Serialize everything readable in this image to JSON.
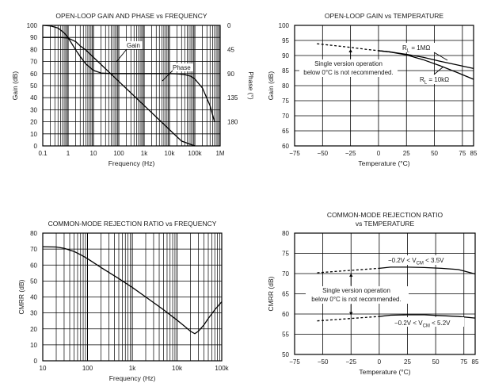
{
  "chart_data": [
    {
      "type": "line",
      "title": "OPEN-LOOP GAIN AND PHASE vs FREQUENCY",
      "xlabel": "Frequency (Hz)",
      "ylabel": "Gain (dB)",
      "y2label": "Phase (°)",
      "xscale": "log",
      "xlim": [
        0.1,
        1000000
      ],
      "ylim": [
        0,
        100
      ],
      "y2lim": [
        0,
        225
      ],
      "xticks": [
        0.1,
        1,
        10,
        100,
        1000,
        10000,
        100000,
        1000000
      ],
      "xtick_labels": [
        "0.1",
        "1",
        "10",
        "100",
        "1k",
        "10k",
        "100k",
        "1M"
      ],
      "yticks": [
        0,
        10,
        20,
        30,
        40,
        50,
        60,
        70,
        80,
        90,
        100
      ],
      "ytick_labels": [
        "0",
        "10",
        "20",
        "30",
        "40",
        "50",
        "60",
        "70",
        "80",
        "90",
        "100"
      ],
      "y2ticks": [
        0,
        45,
        90,
        135,
        180
      ],
      "y2tick_labels": [
        "0",
        "45",
        "90",
        "135",
        "180"
      ],
      "grid": true,
      "series": [
        {
          "name": "Gain",
          "axis": "left",
          "x": [
            0.1,
            0.5,
            1,
            2,
            3,
            5,
            10,
            30,
            100,
            300,
            1000,
            3000,
            10000,
            30000,
            100000
          ],
          "values": [
            90,
            90,
            89.5,
            86.5,
            83,
            79.5,
            73.5,
            64,
            53.5,
            44,
            33.5,
            24,
            13.5,
            4,
            0
          ]
        },
        {
          "name": "Phase",
          "axis": "right",
          "x": [
            0.1,
            0.2,
            0.4,
            0.7,
            1,
            2,
            3,
            5,
            10,
            20,
            50,
            100,
            300,
            1000,
            3000,
            10000,
            20000,
            40000,
            70000,
            100000,
            200000,
            400000,
            600000
          ],
          "values": [
            0,
            1,
            5,
            14,
            23,
            46,
            58,
            72,
            84,
            89,
            90,
            90,
            90,
            90,
            90,
            90,
            90.5,
            92,
            95,
            100,
            117,
            150,
            180
          ]
        }
      ],
      "annotations": [
        "Gain",
        "Phase"
      ]
    },
    {
      "type": "line",
      "title": "OPEN-LOOP GAIN vs TEMPERATURE",
      "xlabel": "Temperature (°C)",
      "ylabel": "Gain (dB)",
      "xlim": [
        -75,
        85
      ],
      "ylim": [
        60,
        100
      ],
      "xticks": [
        -75,
        -50,
        -25,
        0,
        25,
        50,
        75,
        85
      ],
      "xtick_labels": [
        "−75",
        "−50",
        "−25",
        "0",
        "25",
        "50",
        "75",
        "85"
      ],
      "yticks": [
        60,
        65,
        70,
        75,
        80,
        85,
        90,
        95,
        100
      ],
      "ytick_labels": [
        "60",
        "65",
        "70",
        "75",
        "80",
        "85",
        "90",
        "95",
        "100"
      ],
      "grid": true,
      "series": [
        {
          "name": "RL = 1MΩ",
          "x": [
            -55,
            -40,
            -25,
            -10,
            0,
            10,
            25,
            40,
            55,
            70,
            85
          ],
          "values": [
            93.9,
            93.3,
            92.7,
            92.0,
            91.6,
            91.2,
            90.4,
            89.4,
            88.1,
            86.9,
            85.7
          ],
          "dashed_below": 0
        },
        {
          "name": "RL = 10kΩ",
          "x": [
            0,
            10,
            25,
            40,
            55,
            70,
            85
          ],
          "values": [
            91.6,
            91.2,
            90.2,
            88.6,
            86.6,
            84.4,
            82.1
          ]
        }
      ],
      "annotations": [
        {
          "label_main": "R",
          "label_sub": "L",
          "label_rest": " = 1MΩ"
        },
        {
          "label_main": "R",
          "label_sub": "L",
          "label_rest": " = 10kΩ"
        },
        {
          "line1": "Single version operation",
          "line2": "below 0°C is not recommended."
        }
      ]
    },
    {
      "type": "line",
      "title": "COMMON-MODE REJECTION RATIO vs FREQUENCY",
      "xlabel": "Frequency (Hz)",
      "ylabel": "CMRR (dB)",
      "xscale": "log",
      "xlim": [
        10,
        100000
      ],
      "ylim": [
        0,
        80
      ],
      "xticks": [
        10,
        100,
        1000,
        10000,
        100000
      ],
      "xtick_labels": [
        "10",
        "100",
        "1k",
        "10k",
        "100k"
      ],
      "yticks": [
        0,
        10,
        20,
        30,
        40,
        50,
        60,
        70,
        80
      ],
      "ytick_labels": [
        "0",
        "10",
        "20",
        "30",
        "40",
        "50",
        "60",
        "70",
        "80"
      ],
      "grid": true,
      "series": [
        {
          "name": "CMRR",
          "x": [
            10,
            20,
            30,
            50,
            70,
            100,
            200,
            500,
            1000,
            2000,
            5000,
            10000,
            15000,
            20000,
            25000,
            30000,
            40000,
            50000,
            70000,
            100000
          ],
          "values": [
            71.5,
            71.3,
            70.5,
            68.5,
            66.5,
            64,
            58.5,
            51.5,
            46,
            40,
            32,
            25.5,
            21.5,
            18.5,
            17,
            18.5,
            22.5,
            26.5,
            32,
            37
          ]
        }
      ]
    },
    {
      "type": "line",
      "title": "COMMON-MODE REJECTION RATIO",
      "title2": "vs TEMPERATURE",
      "xlabel": "Temperature (°C)",
      "ylabel": "CMRR (dB)",
      "xlim": [
        -75,
        85
      ],
      "ylim": [
        50,
        80
      ],
      "xticks": [
        -75,
        -50,
        -25,
        0,
        25,
        50,
        75,
        85
      ],
      "xtick_labels": [
        "−75",
        "−50",
        "−25",
        "0",
        "25",
        "50",
        "75",
        "85"
      ],
      "yticks": [
        50,
        55,
        60,
        65,
        70,
        75,
        80
      ],
      "ytick_labels": [
        "50",
        "55",
        "60",
        "65",
        "70",
        "75",
        "80"
      ],
      "grid": true,
      "series": [
        {
          "name": "−0.2V < VCM < 3.5V",
          "x": [
            -55,
            -40,
            -25,
            -10,
            0,
            10,
            25,
            40,
            55,
            70,
            85
          ],
          "values": [
            70.2,
            70.5,
            70.8,
            71.1,
            71.3,
            71.6,
            71.6,
            71.5,
            71.3,
            71.0,
            69.9
          ],
          "dashed_below": 0
        },
        {
          "name": "−0.2V < VCM < 5.2V",
          "x": [
            -55,
            -40,
            -25,
            -10,
            0,
            10,
            25,
            40,
            55,
            70,
            85
          ],
          "values": [
            58.3,
            58.6,
            58.9,
            59.2,
            59.4,
            59.7,
            59.8,
            59.8,
            59.6,
            59.4,
            59.0
          ],
          "dashed_below": 0
        }
      ],
      "annotations": [
        {
          "label_main": "−0.2V < V",
          "label_sub": "CM",
          "label_rest": " < 3.5V"
        },
        {
          "label_main": "−0.2V < V",
          "label_sub": "CM",
          "label_rest": " < 5.2V"
        },
        {
          "line1": "Single version operation",
          "line2": "below 0°C is not recommended."
        }
      ]
    }
  ]
}
